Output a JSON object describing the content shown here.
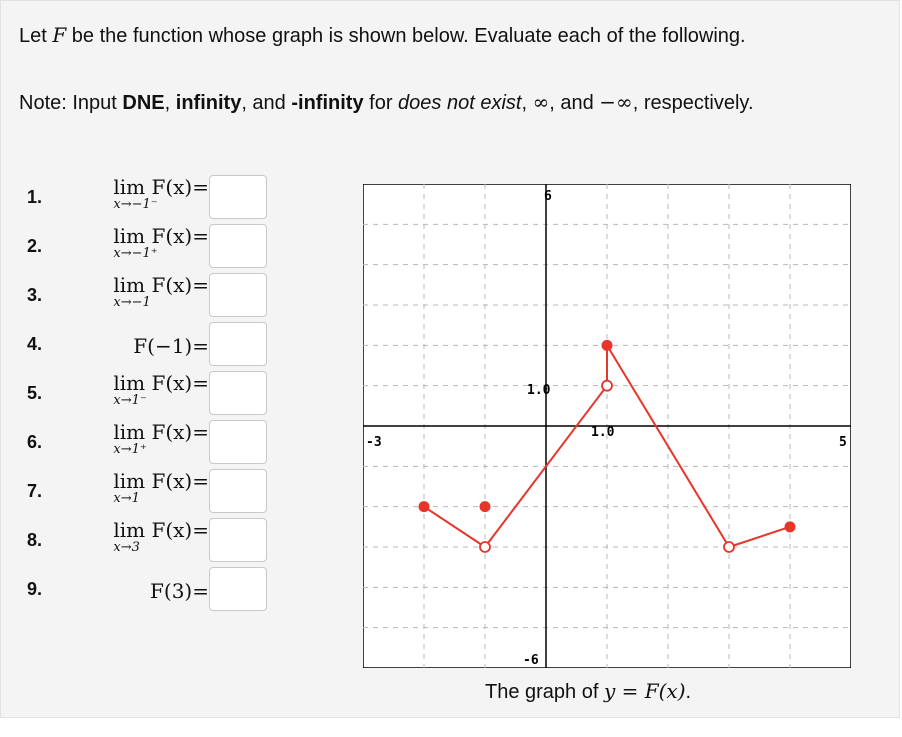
{
  "prompt": {
    "pre": "Let ",
    "var": "F",
    "post": " be the function whose graph is shown below. Evaluate each of the following."
  },
  "note": {
    "lead": "Note: Input ",
    "dne": "DNE",
    "sep1": ", ",
    "inf": "infinity",
    "sep2": ", and ",
    "ninf": "-infinity",
    "for": " for ",
    "dne_text": "does not exist",
    "sep3": ", ",
    "infty_sym": "∞",
    "sep4": ", and ",
    "ninfty_sym": "−∞",
    "tail": ", respectively."
  },
  "questions": [
    {
      "num": "1.",
      "top": "lim  F(x)=",
      "sub": "x→−1⁻",
      "answer": ""
    },
    {
      "num": "2.",
      "top": "lim  F(x)=",
      "sub": "x→−1⁺",
      "answer": ""
    },
    {
      "num": "3.",
      "top": "lim  F(x)=",
      "sub": "x→−1",
      "answer": ""
    },
    {
      "num": "4.",
      "top": "F(−1)=",
      "sub": "",
      "answer": ""
    },
    {
      "num": "5.",
      "top": "lim  F(x)=",
      "sub": "x→1⁻",
      "answer": ""
    },
    {
      "num": "6.",
      "top": "lim  F(x)=",
      "sub": "x→1⁺",
      "answer": ""
    },
    {
      "num": "7.",
      "top": "lim F(x)=",
      "sub": "x→1",
      "answer": ""
    },
    {
      "num": "8.",
      "top": "lim F(x)=",
      "sub": "x→3",
      "answer": ""
    },
    {
      "num": "9.",
      "top": "F(3)=",
      "sub": "",
      "answer": ""
    }
  ],
  "graph": {
    "label_ymax": "6",
    "label_ymin": "-6",
    "label_xmin": "-3",
    "label_xmax": "5",
    "label_ytick": "1.0",
    "label_xtick": "1.0",
    "line_color": "#e8352a",
    "grid_color": "#b8b8b8",
    "xlim": [
      -3,
      5
    ],
    "ylim": [
      -6,
      6
    ]
  },
  "chart_data": {
    "type": "line",
    "xlim": [
      -3,
      5
    ],
    "ylim": [
      -6,
      6
    ],
    "grid": true,
    "segments": [
      {
        "points": [
          [
            -2,
            -2
          ],
          [
            -1,
            -3
          ]
        ]
      },
      {
        "points": [
          [
            -1,
            -3
          ],
          [
            1,
            1
          ]
        ]
      },
      {
        "points": [
          [
            1,
            1
          ],
          [
            1,
            2
          ]
        ]
      },
      {
        "points": [
          [
            1,
            2
          ],
          [
            3,
            -3
          ]
        ]
      },
      {
        "points": [
          [
            3,
            -3
          ],
          [
            4,
            -2.5
          ]
        ]
      }
    ],
    "closed_points": [
      [
        -2,
        -2
      ],
      [
        -1,
        -2
      ],
      [
        1,
        2
      ],
      [
        4,
        -2.5
      ]
    ],
    "open_points": [
      [
        -1,
        -3
      ],
      [
        1,
        1
      ],
      [
        3,
        -3
      ]
    ]
  },
  "caption": {
    "pre": "The graph of ",
    "eq": "y = F(x)",
    "post": "."
  }
}
